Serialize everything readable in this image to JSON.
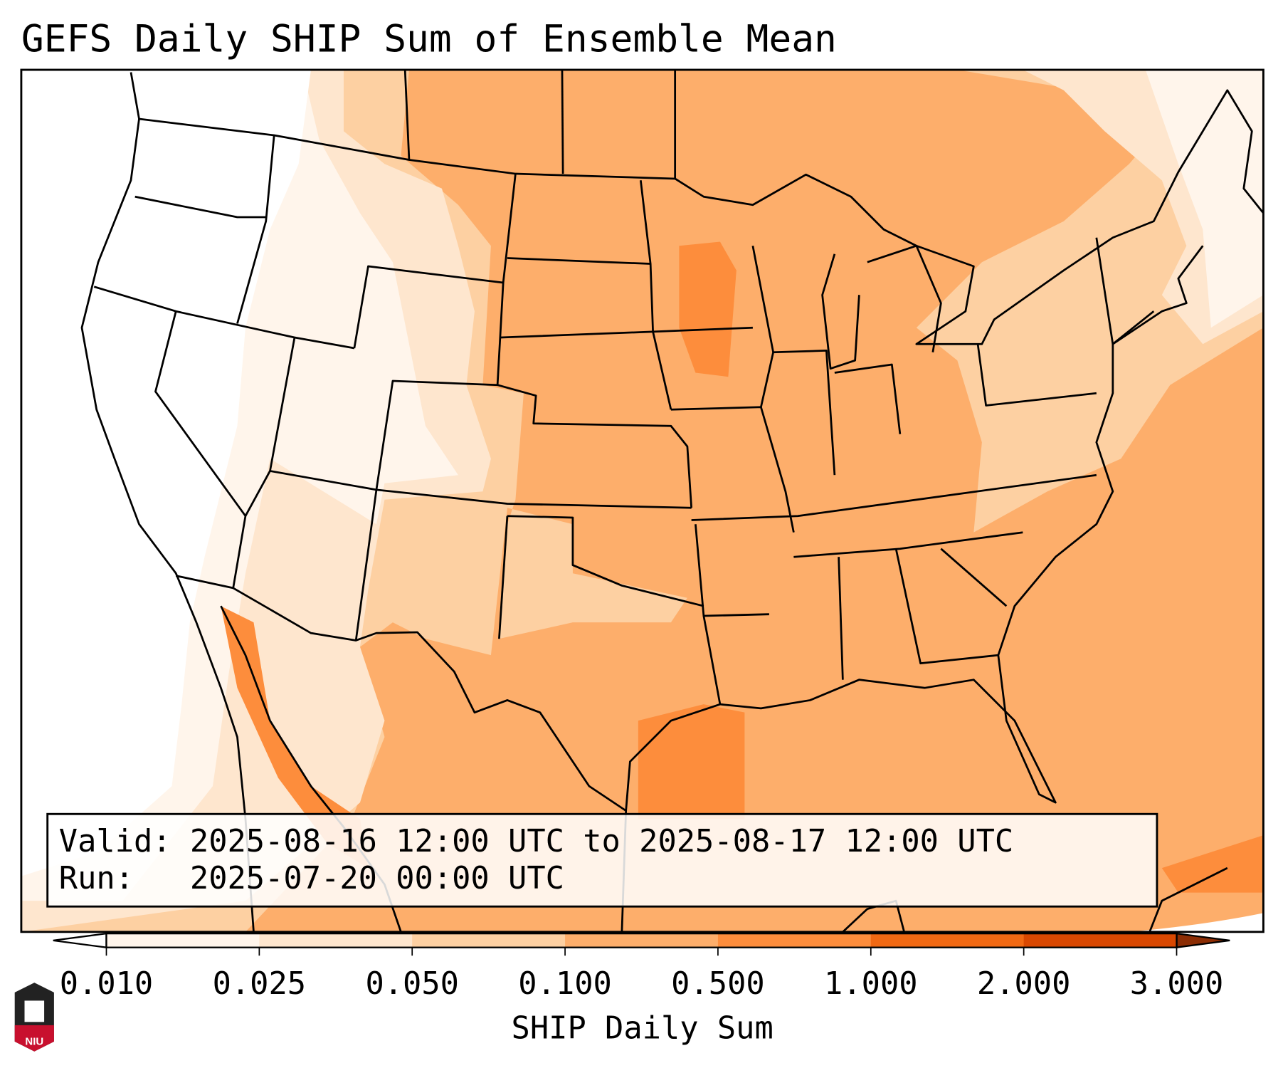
{
  "chart_data": {
    "type": "heatmap",
    "title": "GEFS Daily SHIP Sum of Ensemble Mean",
    "colorbar": {
      "label": "SHIP Daily Sum",
      "ticks": [
        "0.010",
        "0.025",
        "0.050",
        "0.100",
        "0.500",
        "1.000",
        "2.000",
        "3.000"
      ],
      "levels": [
        0.01,
        0.025,
        0.05,
        0.1,
        0.5,
        1.0,
        2.0,
        3.0
      ],
      "colors": [
        "#fff5eb",
        "#fee6ce",
        "#fdd0a2",
        "#fdae6b",
        "#fd8d3c",
        "#f16913",
        "#d94801"
      ],
      "under_color": "#ffffff",
      "over_color": "#8c2d04",
      "extend": "both"
    },
    "region": "Continental United States, Gulf of Mexico, western Atlantic",
    "summary": {
      "west_coast": "below 0.010",
      "intermountain_west": "0.010-0.050",
      "texas_new_mexico": "0.050-0.100",
      "central_eastern_us": "0.100-0.500",
      "gulf_iowa_baja_hotspots": "0.500-1.000"
    }
  },
  "info_box": {
    "valid_line": "Valid: 2025-08-16 12:00 UTC to 2025-08-17 12:00 UTC",
    "run_line": "Run:   2025-07-20 00:00 UTC"
  },
  "logo": {
    "text": "NIU"
  }
}
